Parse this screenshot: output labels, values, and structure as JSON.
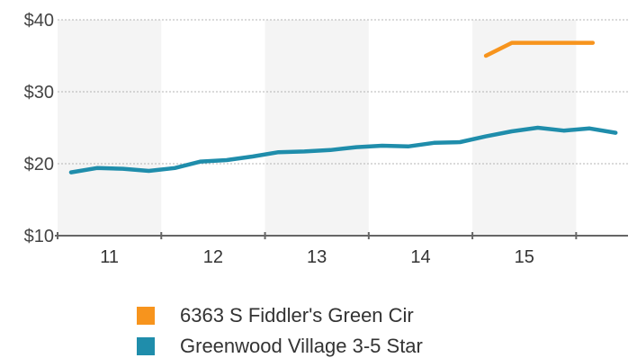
{
  "chart_data": {
    "type": "line",
    "title": "",
    "xlabel": "",
    "ylabel": "",
    "x_ticks": [
      "11",
      "12",
      "13",
      "14",
      "15"
    ],
    "y_ticks": [
      "$10",
      "$20",
      "$30",
      "$40"
    ],
    "ylim": [
      10,
      40
    ],
    "xlim": [
      10.5,
      16.0
    ],
    "grid": true,
    "legend_position": "bottom",
    "series": [
      {
        "name": "6363 S Fiddler's Green Cir",
        "color": "#f7941d",
        "x": [
          14.63,
          14.88,
          15.0,
          15.25,
          15.5,
          15.66
        ],
        "y": [
          35.0,
          36.8,
          36.8,
          36.8,
          36.8,
          36.8
        ]
      },
      {
        "name": "Greenwood Village 3-5 Star",
        "color": "#1f8dab",
        "x": [
          10.63,
          10.88,
          11.13,
          11.38,
          11.63,
          11.88,
          12.13,
          12.38,
          12.63,
          12.88,
          13.13,
          13.38,
          13.63,
          13.88,
          14.13,
          14.38,
          14.63,
          14.88,
          15.13,
          15.38,
          15.63,
          15.88
        ],
        "y": [
          18.8,
          19.4,
          19.3,
          19.0,
          19.4,
          20.3,
          20.5,
          21.0,
          21.6,
          21.7,
          21.9,
          22.3,
          22.5,
          22.4,
          22.9,
          23.0,
          23.8,
          24.5,
          25.0,
          24.6,
          24.9,
          24.3
        ]
      }
    ]
  }
}
